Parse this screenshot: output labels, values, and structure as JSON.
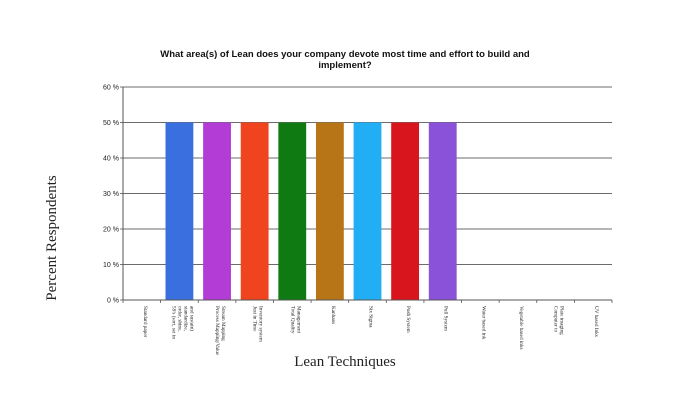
{
  "chart_data": {
    "type": "bar",
    "title_lines": [
      "What area(s) of Lean does your company devote most time and effort to build and",
      "implement?"
    ],
    "xlabel": "Lean Techniques",
    "ylabel": "Percent Respondents",
    "ylim": [
      0,
      60
    ],
    "yticks": [
      0,
      10,
      20,
      30,
      40,
      50,
      60
    ],
    "ytick_labels": [
      "0 %",
      "10 %",
      "20 %",
      "30 %",
      "40 %",
      "50 %",
      "60 %"
    ],
    "grid": true,
    "categories": [
      [
        "Standard paper"
      ],
      [
        "5S's (sort, set in",
        "order, shine,",
        "standardize,",
        "and sustain)"
      ],
      [
        "Process Mapping/Value",
        "Stream Mapping"
      ],
      [
        "Just in Time",
        "Inventory system"
      ],
      [
        "Total Quality",
        "Management"
      ],
      [
        "Kanbans"
      ],
      [
        "Six Sigma"
      ],
      [
        "Push System"
      ],
      [
        "Pull System"
      ],
      [
        "Water based ink"
      ],
      [
        "Vegetable based inks"
      ],
      [
        "Computer to",
        "Plate imaging"
      ],
      [
        "UV based Inks"
      ]
    ],
    "values": [
      0,
      50,
      50,
      50,
      50,
      50,
      50,
      50,
      50,
      0,
      0,
      0,
      0
    ],
    "colors": [
      "#cccccc",
      "#3a6fe0",
      "#b43cd6",
      "#f0441e",
      "#0f7a12",
      "#b87518",
      "#22aef5",
      "#d8141c",
      "#8a52d8",
      "#cccccc",
      "#cccccc",
      "#cccccc",
      "#cccccc"
    ]
  }
}
